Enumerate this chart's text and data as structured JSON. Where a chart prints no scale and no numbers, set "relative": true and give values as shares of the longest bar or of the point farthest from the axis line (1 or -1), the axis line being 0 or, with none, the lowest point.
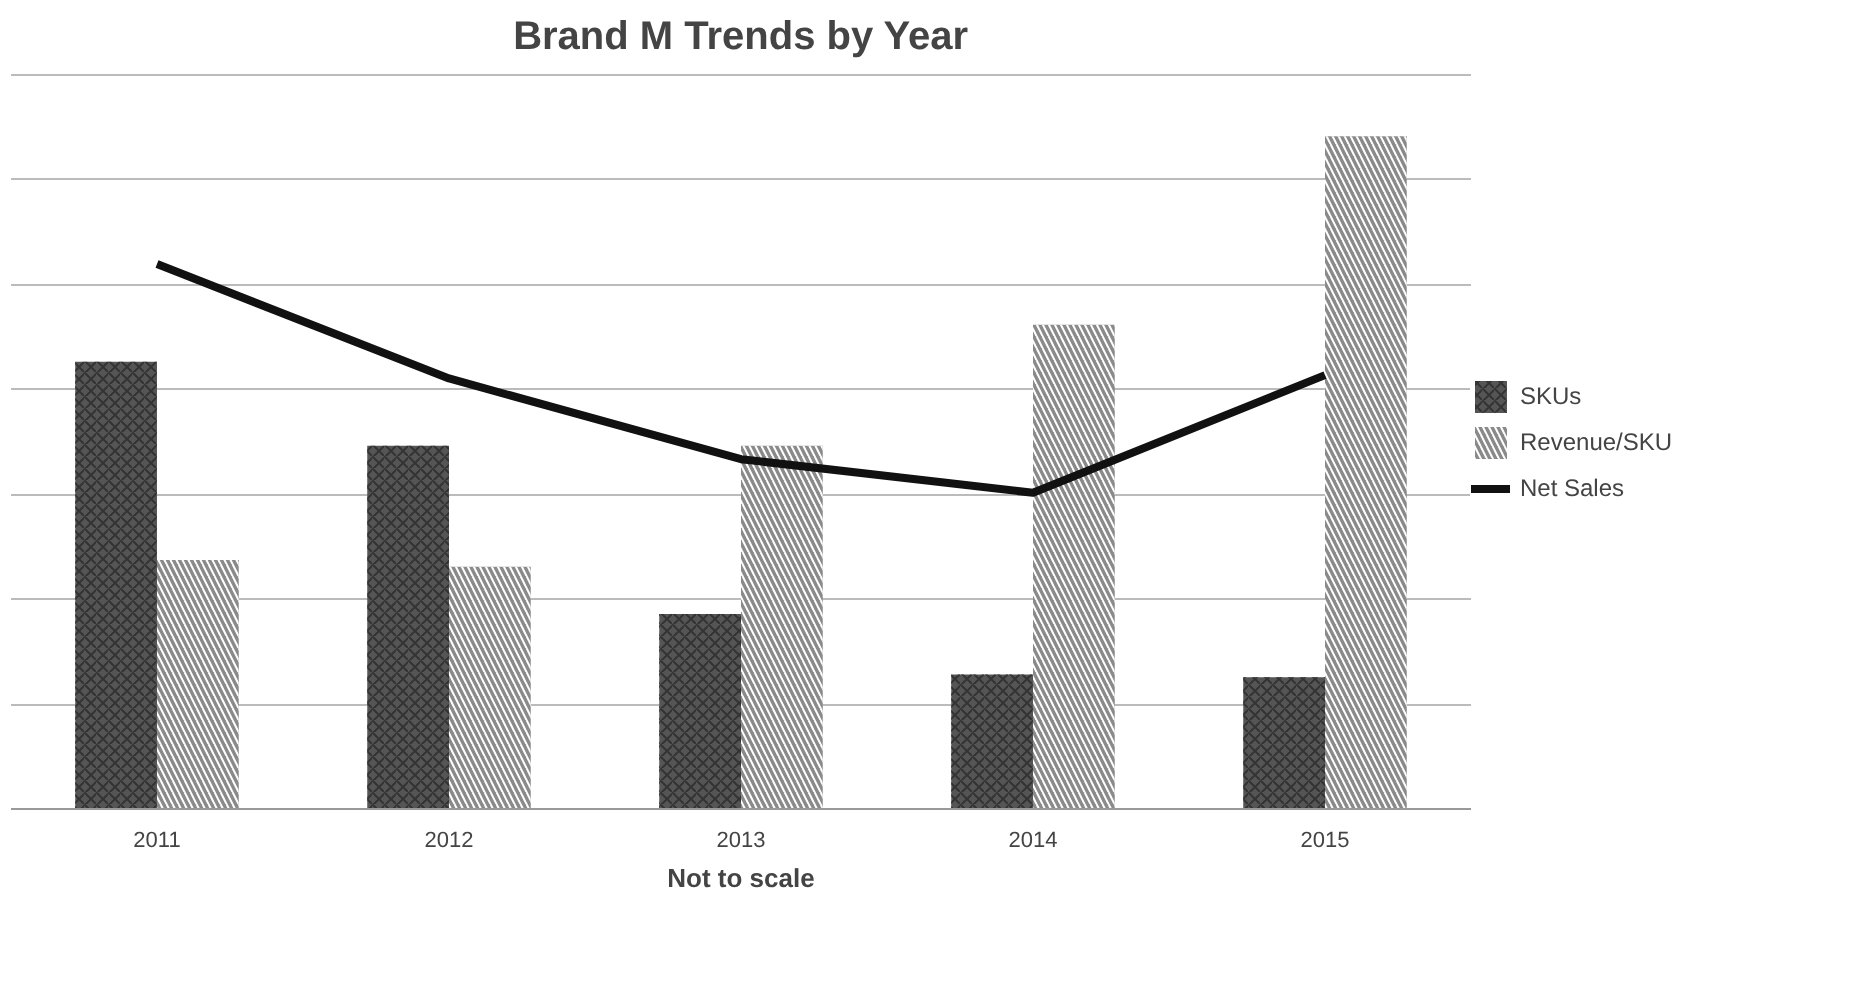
{
  "chart_data": {
    "type": "bar",
    "title": "Brand M Trends by Year",
    "xlabel": "Not to scale",
    "categories": [
      "2011",
      "2012",
      "2013",
      "2014",
      "2015"
    ],
    "relative": true,
    "grid": "y",
    "legend": "right",
    "series": [
      {
        "name": "SKUs",
        "color": "#555555",
        "values": [
          0.665,
          0.54,
          0.29,
          0.2,
          0.196
        ]
      },
      {
        "name": "Revenue/SKU",
        "color": "#8a8a8a",
        "values": [
          0.37,
          0.36,
          0.54,
          0.72,
          1
        ]
      },
      {
        "name": "Net Sales",
        "type": "line",
        "color": "#111111",
        "values": [
          0.81,
          0.64,
          0.52,
          0.47,
          0.645
        ]
      }
    ]
  }
}
